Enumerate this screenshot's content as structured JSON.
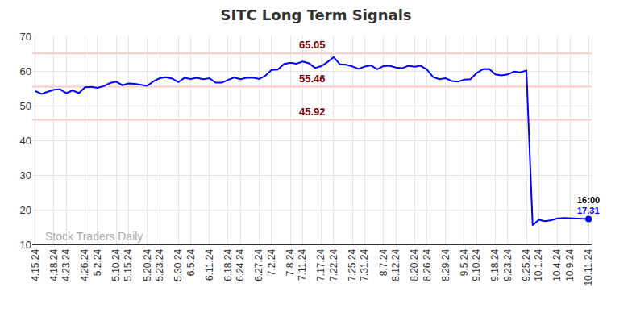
{
  "chart_data": {
    "type": "line",
    "title": "SITC Long Term Signals",
    "categories": [
      "4.15.24",
      null,
      null,
      "4.18.24",
      null,
      "4.23.24",
      null,
      null,
      "4.26.24",
      null,
      "5.2.24",
      null,
      null,
      "5.10.24",
      null,
      "5.15.24",
      null,
      null,
      "5.20.24",
      null,
      "5.23.24",
      null,
      null,
      "5.30.24",
      null,
      "6.5.24",
      null,
      null,
      "6.11.24",
      null,
      null,
      "6.18.24",
      null,
      "6.24.24",
      null,
      null,
      "6.27.24",
      null,
      "7.2.24",
      null,
      null,
      "7.8.24",
      null,
      "7.11.24",
      null,
      null,
      "7.17.24",
      null,
      "7.22.24",
      null,
      null,
      "7.25.24",
      null,
      "7.31.24",
      null,
      null,
      "8.7.24",
      null,
      "8.12.24",
      null,
      null,
      "8.20.24",
      null,
      "8.26.24",
      null,
      null,
      "8.29.24",
      null,
      null,
      "9.5.24",
      null,
      "9.10.24",
      null,
      null,
      "9.18.24",
      null,
      "9.23.24",
      null,
      null,
      "9.25.24",
      null,
      "10.1.24",
      null,
      null,
      "10.4.24",
      null,
      "10.9.24",
      null,
      null,
      "10.11.24"
    ],
    "values": [
      54.2,
      53.4,
      54.0,
      54.6,
      54.7,
      53.6,
      54.4,
      53.6,
      55.3,
      55.4,
      55.1,
      55.6,
      56.5,
      56.9,
      55.9,
      56.4,
      56.3,
      56.0,
      55.7,
      57.0,
      57.9,
      58.2,
      57.8,
      56.8,
      58.0,
      57.7,
      58.0,
      57.6,
      57.9,
      56.6,
      56.6,
      57.4,
      58.1,
      57.6,
      58.0,
      58.1,
      57.7,
      58.6,
      60.3,
      60.4,
      62.0,
      62.4,
      62.1,
      62.7,
      62.2,
      60.9,
      61.4,
      62.6,
      64.0,
      61.9,
      61.8,
      61.3,
      60.6,
      61.3,
      61.6,
      60.5,
      61.4,
      61.5,
      61.0,
      60.8,
      61.5,
      61.2,
      61.5,
      60.4,
      58.2,
      57.6,
      57.9,
      57.1,
      56.9,
      57.5,
      57.6,
      59.4,
      60.5,
      60.6,
      59.0,
      58.7,
      59.0,
      59.8,
      59.6,
      60.1,
      15.5,
      17.1,
      16.7,
      17.0,
      17.5,
      17.6,
      17.5,
      17.4,
      17.3,
      17.31
    ],
    "color": "#0000ff",
    "ylim": [
      10,
      70
    ],
    "yticks": [
      10,
      20,
      30,
      40,
      50,
      60,
      70
    ],
    "grid": true,
    "reference_lines": [
      {
        "value": 65.05,
        "label": "65.05"
      },
      {
        "value": 55.46,
        "label": "55.46"
      },
      {
        "value": 45.92,
        "label": "45.92"
      }
    ],
    "last_point_label": "16:00",
    "watermark": "Stock Traders Daily"
  }
}
